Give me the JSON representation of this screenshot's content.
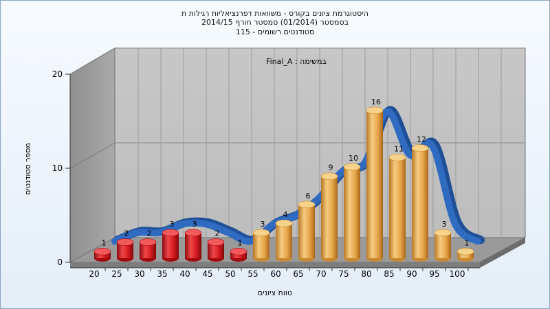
{
  "header": {
    "title_line1": "היסטוגרמת ציונים בקורס - משוואות דפרנציאליות רגילות ת",
    "title_line2": "בסמסטר  (01/2014)  סמסטר חורף 2014/15",
    "title_line3": "סטודנטים רשומים - 115"
  },
  "chart_data": {
    "type": "bar",
    "title": "היסטוגרמת ציונים בקורס - משוואות דפרנציאליות רגילות ת",
    "subtitle": "בסמסטר  (01/2014)  סמסטר חורף 2014/15 | סטודנטים רשומים - 115",
    "annotation": "במשימה : Final_A",
    "xlabel": "טווח ציונים",
    "ylabel": "מספר סטודנטים",
    "categories": [
      "20",
      "25",
      "30",
      "35",
      "40",
      "45",
      "50",
      "55",
      "60",
      "65",
      "70",
      "75",
      "80",
      "85",
      "90",
      "95",
      "100"
    ],
    "values": [
      1,
      2,
      2,
      3,
      3,
      2,
      1,
      3,
      4,
      6,
      9,
      10,
      16,
      11,
      12,
      3,
      1
    ],
    "bar_colors": [
      "#dd1d22",
      "#dd1d22",
      "#dd1d22",
      "#dd1d22",
      "#dd1d22",
      "#dd1d22",
      "#dd1d22",
      "#e8a94a",
      "#e8a94a",
      "#e8a94a",
      "#e8a94a",
      "#e8a94a",
      "#e8a94a",
      "#e8a94a",
      "#e8a94a",
      "#e8a94a",
      "#e8a94a"
    ],
    "y_ticks": [
      0,
      10,
      20
    ],
    "ylim": [
      0,
      20
    ],
    "curve_color": "#2f6bc0",
    "grid": true,
    "legend": "none"
  }
}
